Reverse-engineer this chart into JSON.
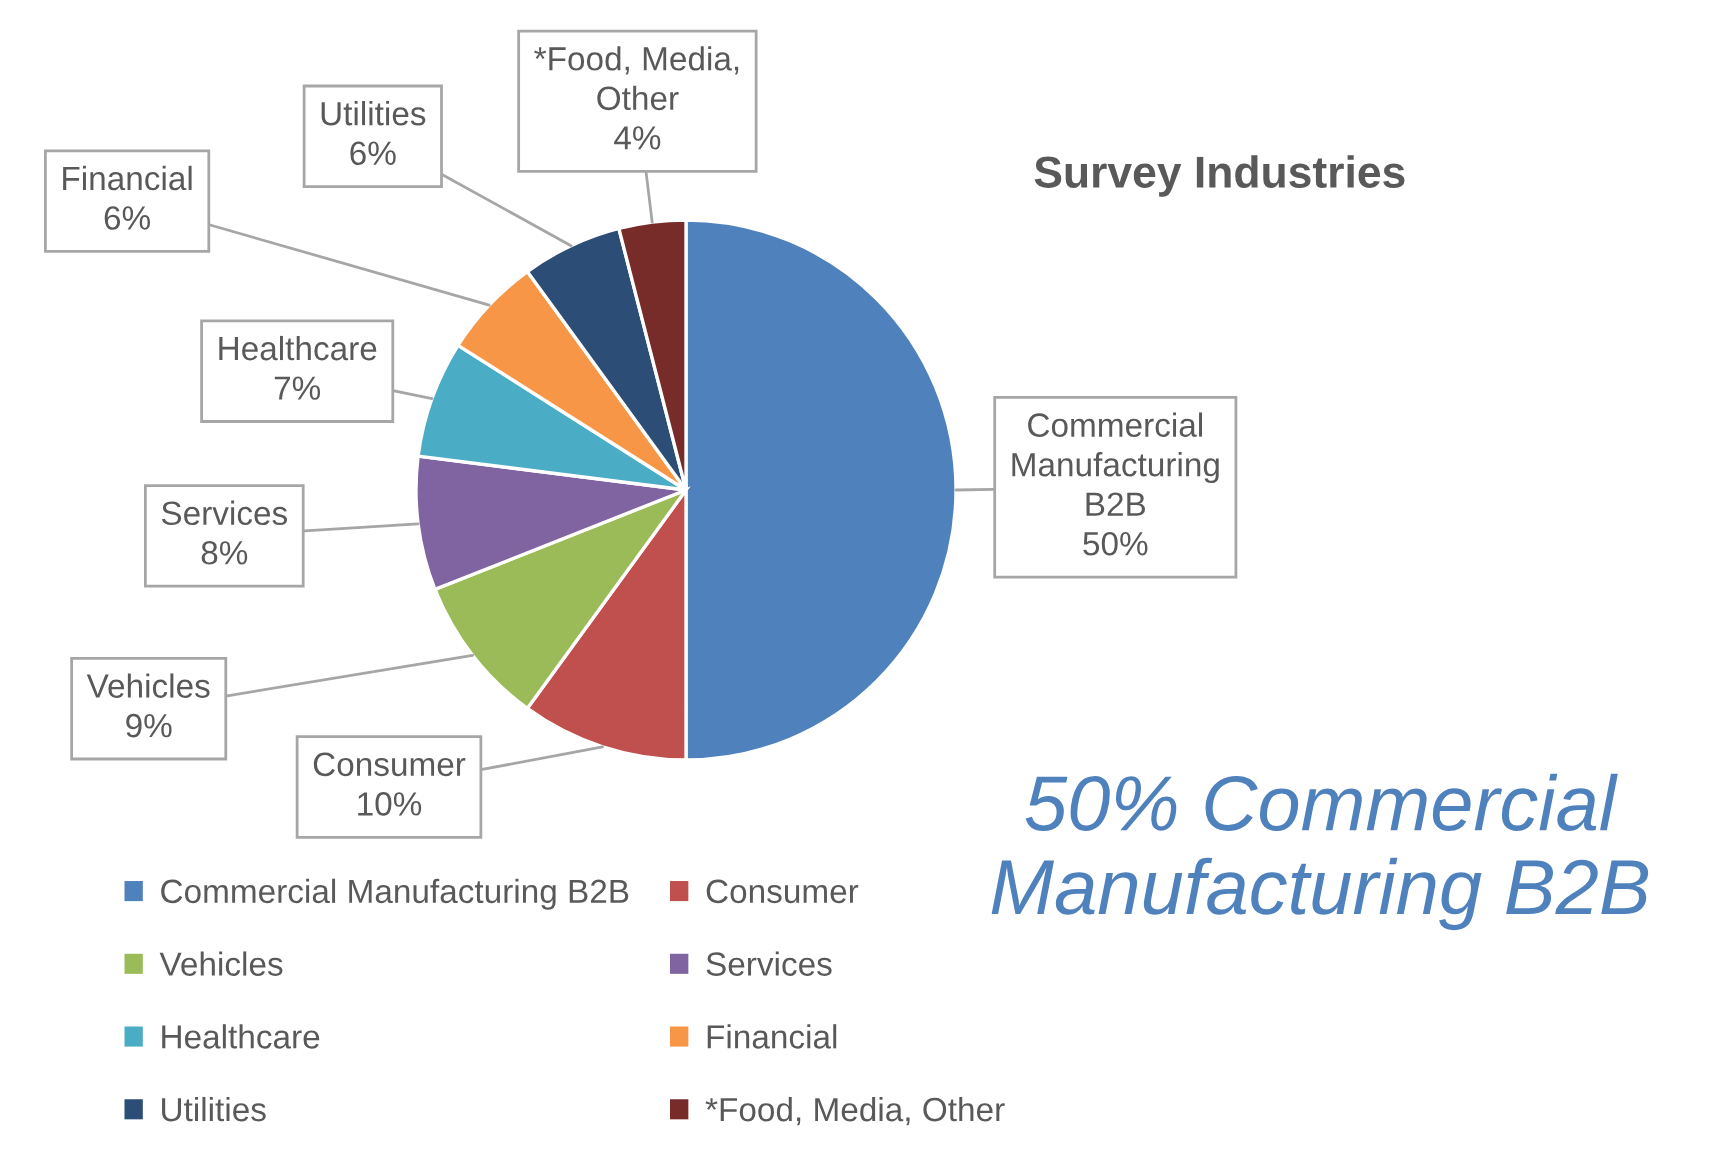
{
  "chart_data": {
    "type": "pie",
    "title": "Survey Industries",
    "categories": [
      "Commercial Manufacturing B2B",
      "Consumer",
      "Vehicles",
      "Services",
      "Healthcare",
      "Financial",
      "Utilities",
      "*Food, Media, Other"
    ],
    "values": [
      50,
      10,
      9,
      8,
      7,
      6,
      6,
      4
    ],
    "colors": [
      "#4f81bd",
      "#c0504d",
      "#9bbb59",
      "#8064a2",
      "#4bacc6",
      "#f79646",
      "#2c4d75",
      "#772c2a"
    ],
    "value_labels": [
      "Commercial\nManufacturing\nB2B\n50%",
      "Consumer\n10%",
      "Vehicles\n9%",
      "Services\n8%",
      "Healthcare\n7%",
      "Financial\n6%",
      "Utilities\n6%",
      "*Food, Media,\nOther\n4%"
    ],
    "annotations": [
      "50% Commercial\nManufacturing B2B"
    ],
    "legend": "bottom"
  }
}
